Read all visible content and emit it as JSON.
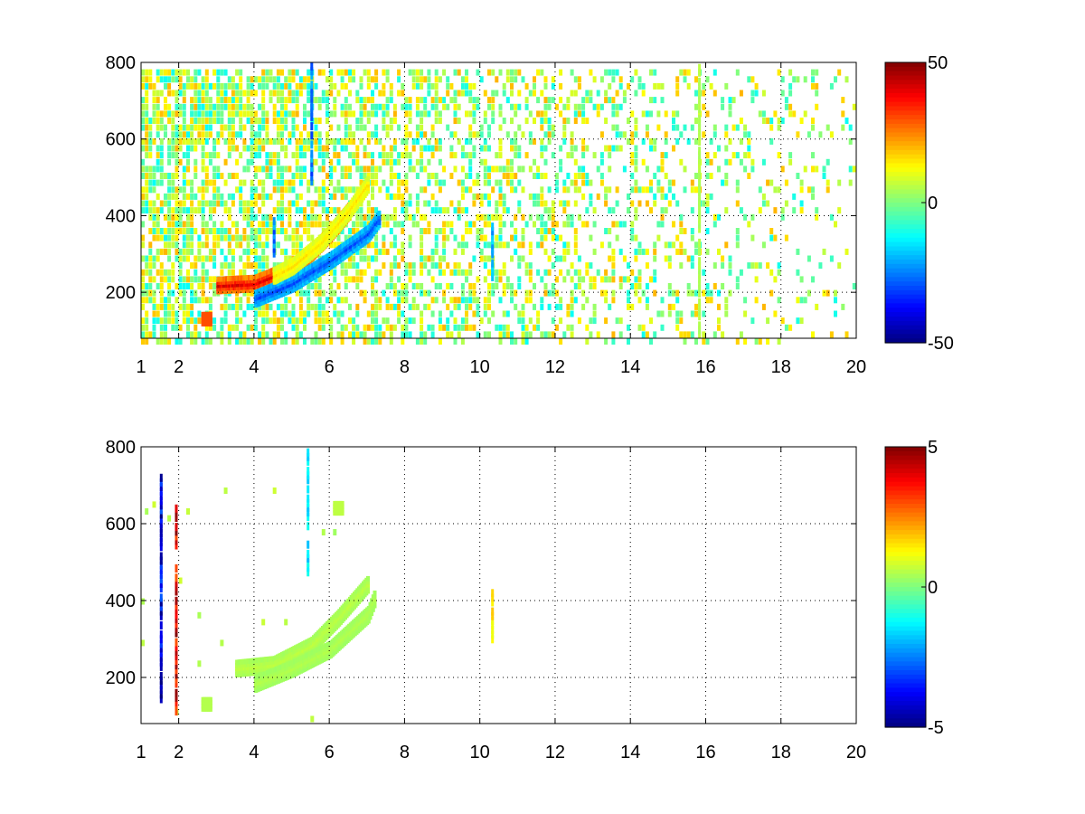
{
  "chart_data": [
    {
      "type": "heatmap",
      "id": "top",
      "xlim": [
        1,
        20
      ],
      "ylim": [
        80,
        800
      ],
      "xticks": [
        1,
        2,
        4,
        6,
        8,
        10,
        12,
        14,
        16,
        18,
        20
      ],
      "yticks": [
        200,
        400,
        600,
        800
      ],
      "xtick_labels": [
        "1",
        "2",
        "4",
        "6",
        "8",
        "10",
        "12",
        "14",
        "16",
        "18",
        "20"
      ],
      "ytick_labels": [
        "200",
        "400",
        "600",
        "800"
      ],
      "grid": true,
      "colormap": "jet",
      "clim": [
        -50,
        50
      ],
      "colorbar_ticks": [
        -50,
        0,
        50
      ],
      "colorbar_labels": [
        "-50",
        "0",
        "50"
      ],
      "colorbar_position": "right",
      "features": [
        {
          "kind": "curve",
          "x": [
            3.0,
            4.0,
            5.0,
            5.5,
            6.0,
            6.5
          ],
          "y": [
            225,
            230,
            270,
            310,
            360,
            420
          ],
          "value": 40
        },
        {
          "kind": "curve",
          "x": [
            4.0,
            5.0,
            6.0,
            7.0,
            7.3
          ],
          "y": [
            190,
            230,
            290,
            360,
            400
          ],
          "value": -30
        },
        {
          "kind": "curve",
          "x": [
            4.5,
            5.0,
            5.8,
            6.5,
            7.0
          ],
          "y": [
            250,
            275,
            340,
            420,
            490
          ],
          "value": 15
        },
        {
          "kind": "band",
          "x": 5.5,
          "y": [
            500,
            800
          ],
          "value": -25
        },
        {
          "kind": "band",
          "x": 4.5,
          "y": [
            300,
            400
          ],
          "value": -25
        },
        {
          "kind": "band",
          "x": 10.3,
          "y": [
            250,
            400
          ],
          "value": -20
        },
        {
          "kind": "band",
          "x": 15.8,
          "y": [
            100,
            800
          ],
          "value": 5
        },
        {
          "kind": "blob",
          "x": 2.7,
          "y": 140,
          "value": 30
        }
      ],
      "noise": {
        "x_range": [
          1,
          20
        ],
        "y_range": [
          80,
          800
        ],
        "value_range": [
          -12,
          20
        ],
        "density_left": 0.75,
        "density_right": 0.1
      }
    },
    {
      "type": "heatmap",
      "id": "bottom",
      "xlim": [
        1,
        20
      ],
      "ylim": [
        80,
        800
      ],
      "xticks": [
        1,
        2,
        4,
        6,
        8,
        10,
        12,
        14,
        16,
        18,
        20
      ],
      "yticks": [
        200,
        400,
        600,
        800
      ],
      "xtick_labels": [
        "1",
        "2",
        "4",
        "6",
        "8",
        "10",
        "12",
        "14",
        "16",
        "18",
        "20"
      ],
      "ytick_labels": [
        "200",
        "400",
        "600",
        "800"
      ],
      "grid": true,
      "colormap": "jet",
      "clim": [
        -5,
        5
      ],
      "colorbar_ticks": [
        -5,
        0,
        5
      ],
      "colorbar_labels": [
        "-5",
        "0",
        "5"
      ],
      "colorbar_position": "right",
      "features": [
        {
          "kind": "curve",
          "x": [
            3.5,
            4.5,
            5.5,
            6.2,
            7.0
          ],
          "y": [
            230,
            240,
            290,
            360,
            450
          ],
          "value": 0.6
        },
        {
          "kind": "curve",
          "x": [
            4.0,
            5.0,
            6.0,
            7.0,
            7.2
          ],
          "y": [
            190,
            230,
            280,
            370,
            420
          ],
          "value": 0.5
        },
        {
          "kind": "band",
          "x": 10.3,
          "y": [
            310,
            430
          ],
          "value": 1.5
        },
        {
          "kind": "band",
          "x": 5.4,
          "y": [
            460,
            800
          ],
          "value": -1.5
        },
        {
          "kind": "band",
          "x": 1.9,
          "y": [
            110,
            650
          ],
          "value": 4
        },
        {
          "kind": "band",
          "x": 1.5,
          "y": [
            130,
            730
          ],
          "value": -4
        },
        {
          "kind": "blob",
          "x": 2.7,
          "y": 140,
          "value": 0.5
        },
        {
          "kind": "blob",
          "x": 6.2,
          "y": 650,
          "value": 0.6
        }
      ],
      "noise": {
        "x_range": [
          1,
          7.5
        ],
        "y_range": [
          100,
          760
        ],
        "value_range": [
          0.3,
          0.8
        ],
        "density_left": 0.02,
        "density_right": 0.0
      }
    }
  ]
}
